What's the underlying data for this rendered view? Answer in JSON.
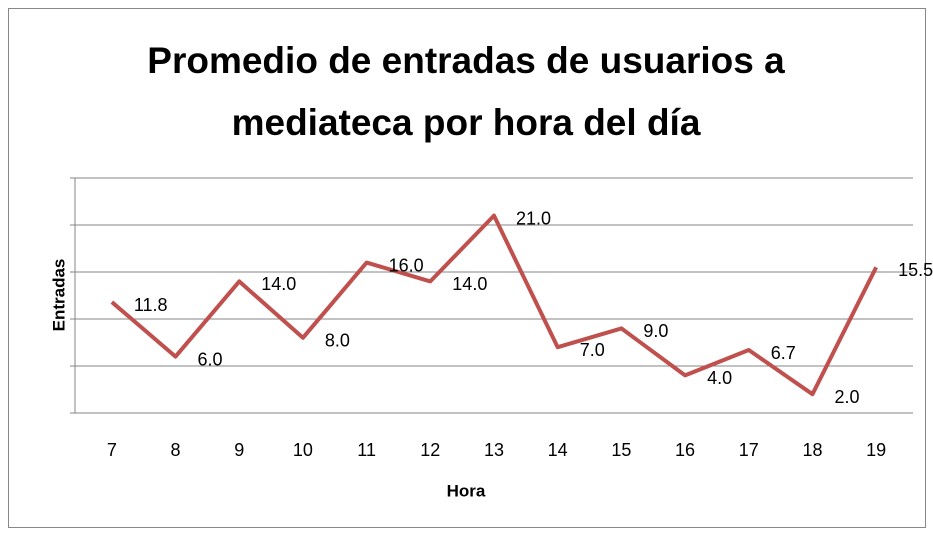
{
  "chart_data": {
    "type": "line",
    "title": "Promedio de entradas de usuarios a mediateca por hora del día",
    "x_label": "Hora",
    "y_label": "Entradas",
    "categories": [
      "7",
      "8",
      "9",
      "10",
      "11",
      "12",
      "13",
      "14",
      "15",
      "16",
      "17",
      "18",
      "19"
    ],
    "values": [
      11.8,
      6.0,
      14.0,
      8.0,
      16.0,
      14.0,
      21.0,
      7.0,
      9.0,
      4.0,
      6.7,
      2.0,
      15.5
    ],
    "value_labels": [
      "11.8",
      "6.0",
      "14.0",
      "8.0",
      "16.0",
      "14.0",
      "21.0",
      "7.0",
      "9.0",
      "4.0",
      "6.7",
      "2.0",
      "15.5"
    ],
    "color": "#c0504d",
    "ylim": [
      0,
      25
    ],
    "yticks": [
      0,
      5,
      10,
      15,
      20,
      25
    ],
    "grid": true
  }
}
